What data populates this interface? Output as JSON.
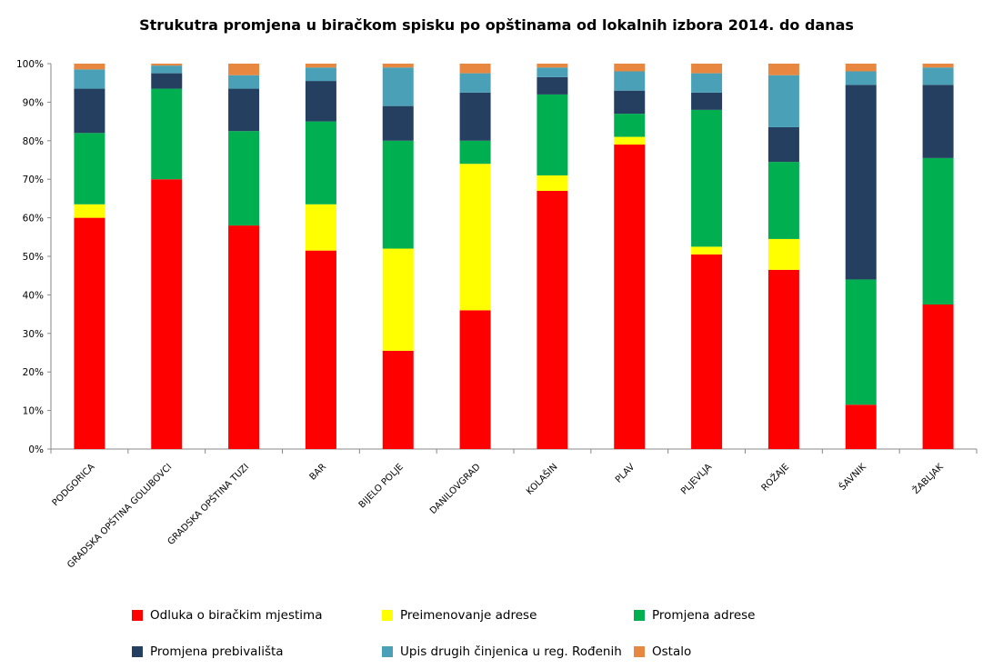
{
  "chart_data": {
    "type": "bar",
    "stacked": "percent",
    "title": "Strukutra  promjena u biračkom spisku  po opštinama od lokalnih izbora 2014. do danas",
    "categories": [
      "PODGORICA",
      "GRADSKA OPŠTINA GOLUBOVCI",
      "GRADSKA OPŠTINA TUZI",
      "BAR",
      "BIJELO POLJE",
      "DANILOVGRAD",
      "KOLAŠIN",
      "PLAV",
      "PLJEVLJA",
      "ROŽAJE",
      "ŠAVNIK",
      "ŽABLJAK"
    ],
    "series": [
      {
        "name": "Odluka  o biračkim mjestima",
        "color": "#ff0000",
        "values": [
          60,
          70,
          58,
          51.5,
          25.5,
          36,
          67,
          79,
          50.5,
          46.5,
          11.5,
          37.5
        ]
      },
      {
        "name": "Preimenovanje  adrese",
        "color": "#ffff00",
        "values": [
          3.5,
          0,
          0,
          12,
          26.5,
          38,
          4,
          2,
          2,
          8,
          0,
          0
        ]
      },
      {
        "name": "Promjena adrese",
        "color": "#00b050",
        "values": [
          18.5,
          23.5,
          24.5,
          21.5,
          28,
          6,
          21,
          6,
          35.5,
          20,
          32.5,
          38
        ]
      },
      {
        "name": "Promjena  prebivališta",
        "color": "#243f60",
        "values": [
          11.5,
          4,
          11,
          10.5,
          9,
          12.5,
          4.5,
          6,
          4.5,
          9,
          50.5,
          19
        ]
      },
      {
        "name": "Upis  drugih  činjenica  u reg. Rođenih",
        "color": "#4aa1b7",
        "values": [
          5,
          2,
          3.5,
          3.5,
          10,
          5,
          2.5,
          5,
          5,
          13.5,
          3.5,
          4.5
        ]
      },
      {
        "name": "Ostalo",
        "color": "#e8873f",
        "values": [
          1.5,
          0.5,
          3,
          1,
          1,
          2.5,
          1,
          2,
          2.5,
          3,
          2,
          1
        ]
      }
    ],
    "y_ticks": [
      "0%",
      "10%",
      "20%",
      "30%",
      "40%",
      "50%",
      "60%",
      "70%",
      "80%",
      "90%",
      "100%"
    ],
    "ylim": [
      0,
      100
    ],
    "grid": false,
    "legend_position": "bottom"
  }
}
